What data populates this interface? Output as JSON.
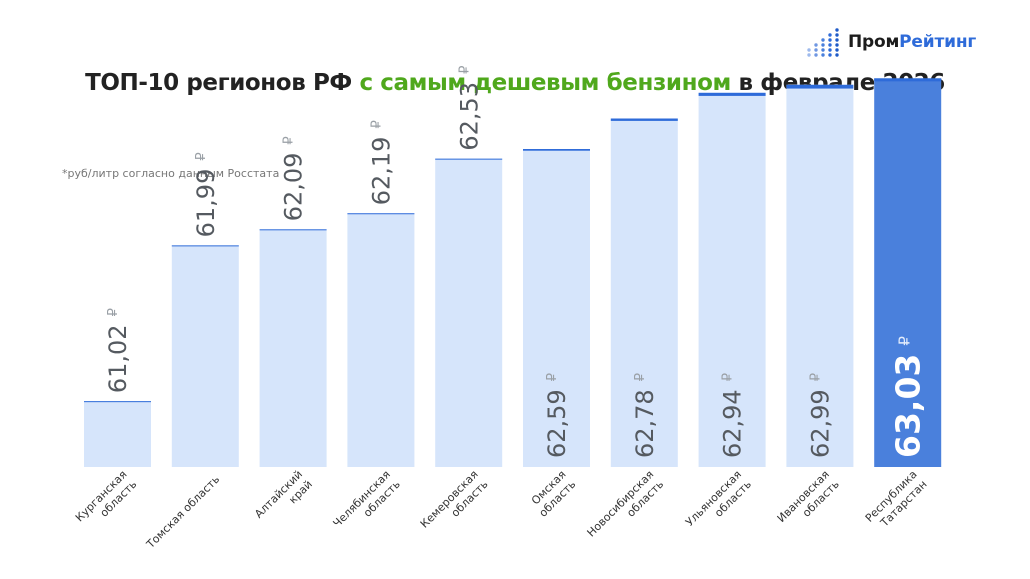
{
  "logo": {
    "text_main": "Пром",
    "text_accent": "Рейтинг",
    "icon": "bar-dots-icon",
    "accent_color": "#2e6bd9"
  },
  "title": {
    "part1": "ТОП-10 регионов РФ ",
    "highlight": "с самым дешевым бензином",
    "part2": " в феврале 2026",
    "highlight_color": "#4fa81c"
  },
  "note": "*руб/литр согласно данным Росстата",
  "chart_data": {
    "type": "bar",
    "title": "ТОП-10 регионов РФ с самым дешевым бензином в феврале 2026",
    "ylabel": "",
    "currency": "₽",
    "categories": [
      [
        "Курганская",
        "область"
      ],
      [
        "Томская область"
      ],
      [
        "Алтайский",
        "край"
      ],
      [
        "Челябинская",
        "область"
      ],
      [
        "Кемеровская",
        "область"
      ],
      [
        "Омская",
        "область"
      ],
      [
        "Новосибирская",
        "область"
      ],
      [
        "Ульяновская",
        "область"
      ],
      [
        "Ивановская",
        "область"
      ],
      [
        "Республика",
        "Татарстан"
      ]
    ],
    "values": [
      61.02,
      61.99,
      62.09,
      62.19,
      62.53,
      62.59,
      62.78,
      62.94,
      62.99,
      63.03
    ],
    "labels": [
      "61,02",
      "61,99",
      "62,09",
      "62,19",
      "62,53",
      "62,59",
      "62,78",
      "62,94",
      "62,99",
      "63,03"
    ],
    "highlight_index": 9,
    "colors": {
      "bar": "#d6e5fb",
      "bar_top": "#2e6bd9",
      "highlight": "#4a80dc",
      "label": "#555a60",
      "highlight_label": "#ffffff"
    }
  }
}
